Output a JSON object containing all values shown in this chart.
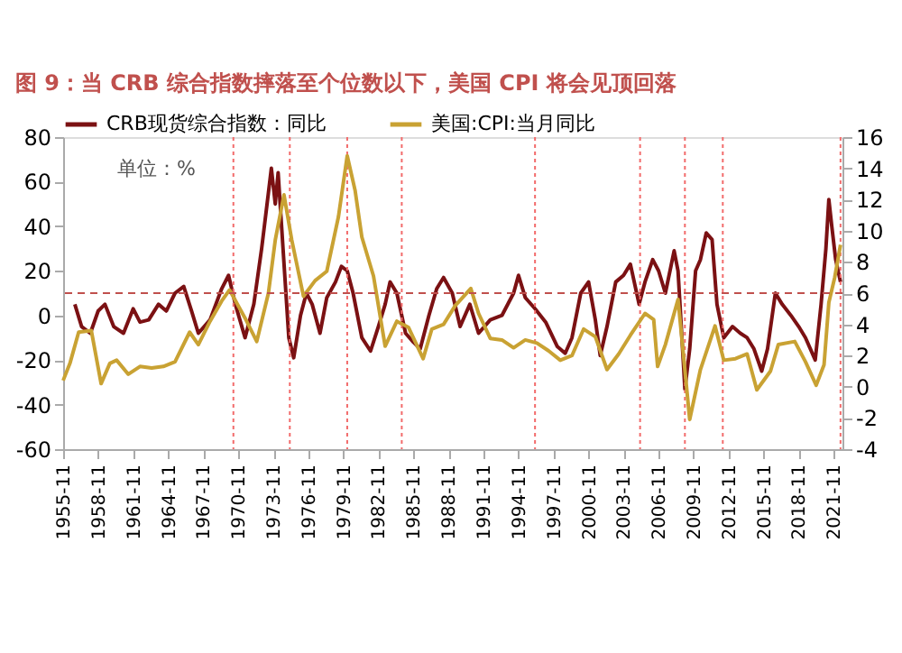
{
  "chart_data": {
    "type": "line",
    "title": "图 9：当 CRB 综合指数摔落至个位数以下，美国 CPI 将会见顶回落",
    "annotations": [
      "单位：%"
    ],
    "xlim": [
      "1955-11",
      "2022-08"
    ],
    "xticks": [
      "1955-11",
      "1958-11",
      "1961-11",
      "1964-11",
      "1967-11",
      "1970-11",
      "1973-11",
      "1976-11",
      "1979-11",
      "1982-11",
      "1985-11",
      "1988-11",
      "1991-11",
      "1994-11",
      "1997-11",
      "2000-11",
      "2003-11",
      "2006-11",
      "2009-11",
      "2012-11",
      "2015-11",
      "2018-11",
      "2021-11"
    ],
    "ylim": [
      -60,
      80
    ],
    "yticks": [
      -60,
      -40,
      -20,
      0,
      20,
      40,
      60,
      80
    ],
    "y2lim": [
      -4,
      16
    ],
    "y2ticks": [
      -4,
      -2,
      0,
      2,
      4,
      6,
      8,
      10,
      12,
      14,
      16
    ],
    "grid": false,
    "legend": "top",
    "marker": "none",
    "line_style": "solid",
    "series": [
      {
        "name": "CRB现货综合指数：同比",
        "color": "#7b1113",
        "axis": "y",
        "x": [
          "1956-11",
          "1957-06",
          "1958-03",
          "1958-11",
          "1959-06",
          "1960-03",
          "1961-01",
          "1961-11",
          "1962-06",
          "1963-03",
          "1964-01",
          "1964-09",
          "1965-06",
          "1966-03",
          "1966-11",
          "1967-06",
          "1968-06",
          "1969-06",
          "1970-01",
          "1970-08",
          "1971-06",
          "1972-03",
          "1972-11",
          "1973-06",
          "1973-09",
          "1974-01",
          "1974-04",
          "1974-09",
          "1975-03",
          "1975-08",
          "1976-03",
          "1976-09",
          "1977-03",
          "1977-11",
          "1978-06",
          "1979-03",
          "1979-09",
          "1980-03",
          "1980-09",
          "1981-06",
          "1982-03",
          "1982-11",
          "1983-06",
          "1983-11",
          "1984-06",
          "1985-03",
          "1985-11",
          "1986-06",
          "1987-03",
          "1987-11",
          "1988-06",
          "1989-03",
          "1989-11",
          "1990-09",
          "1991-06",
          "1992-06",
          "1993-06",
          "1994-06",
          "1994-11",
          "1995-06",
          "1996-04",
          "1997-03",
          "1998-03",
          "1998-11",
          "1999-06",
          "2000-03",
          "2000-11",
          "2001-06",
          "2001-11",
          "2002-06",
          "2003-03",
          "2003-11",
          "2004-06",
          "2005-03",
          "2005-09",
          "2006-05",
          "2006-11",
          "2007-06",
          "2008-03",
          "2008-07",
          "2009-02",
          "2009-07",
          "2010-01",
          "2010-06",
          "2010-12",
          "2011-06",
          "2011-11",
          "2012-06",
          "2013-03",
          "2013-11",
          "2014-06",
          "2015-01",
          "2015-09",
          "2016-03",
          "2016-11",
          "2017-06",
          "2018-03",
          "2018-11",
          "2019-06",
          "2020-04",
          "2020-10",
          "2021-03",
          "2021-06",
          "2021-09",
          "2022-01",
          "2022-06"
        ],
        "values": [
          5,
          -5,
          -8,
          2,
          5,
          -5,
          -8,
          3,
          -3,
          -2,
          5,
          2,
          10,
          13,
          2,
          -8,
          -2,
          12,
          18,
          5,
          -10,
          5,
          30,
          55,
          66,
          50,
          64,
          30,
          -10,
          -19,
          0,
          10,
          5,
          -8,
          8,
          15,
          22,
          20,
          10,
          -10,
          -16,
          -5,
          5,
          15,
          10,
          -8,
          -12,
          -15,
          0,
          12,
          17,
          10,
          -5,
          5,
          -8,
          -2,
          0,
          10,
          18,
          8,
          3,
          -3,
          -14,
          -17,
          -10,
          10,
          15,
          -2,
          -18,
          -5,
          15,
          18,
          23,
          5,
          15,
          25,
          20,
          10,
          29,
          20,
          -33,
          -15,
          20,
          25,
          37,
          34,
          5,
          -10,
          -5,
          -8,
          -10,
          -15,
          -25,
          -15,
          10,
          5,
          0,
          -5,
          -10,
          -20,
          5,
          30,
          52,
          40,
          25,
          15
        ]
      },
      {
        "name": "美国:CPI:当月同比",
        "color": "#c9a233",
        "axis": "y2",
        "x": [
          "1955-11",
          "1956-06",
          "1957-03",
          "1958-04",
          "1959-02",
          "1959-11",
          "1960-06",
          "1961-06",
          "1962-06",
          "1963-06",
          "1964-06",
          "1965-06",
          "1966-09",
          "1967-06",
          "1968-06",
          "1969-06",
          "1970-02",
          "1971-06",
          "1972-06",
          "1973-06",
          "1974-01",
          "1974-10",
          "1975-06",
          "1976-06",
          "1977-06",
          "1978-06",
          "1979-06",
          "1980-03",
          "1980-11",
          "1981-06",
          "1982-06",
          "1983-06",
          "1984-06",
          "1985-06",
          "1986-09",
          "1987-06",
          "1988-06",
          "1989-06",
          "1990-10",
          "1991-06",
          "1992-06",
          "1993-06",
          "1994-06",
          "1995-06",
          "1996-06",
          "1997-06",
          "1998-06",
          "1999-06",
          "2000-06",
          "2001-06",
          "2002-06",
          "2003-06",
          "2004-06",
          "2005-09",
          "2006-06",
          "2006-10",
          "2007-06",
          "2008-07",
          "2009-07",
          "2010-06",
          "2011-09",
          "2012-06",
          "2013-06",
          "2014-06",
          "2015-04",
          "2016-06",
          "2017-02",
          "2018-07",
          "2019-06",
          "2020-05",
          "2021-01",
          "2021-06",
          "2021-12",
          "2022-06"
        ],
        "values": [
          0.4,
          1.5,
          3.5,
          3.6,
          0.2,
          1.5,
          1.7,
          0.8,
          1.3,
          1.2,
          1.3,
          1.6,
          3.5,
          2.7,
          4.2,
          5.5,
          6.2,
          4.4,
          2.9,
          6,
          9.4,
          12.3,
          9.4,
          5.8,
          6.8,
          7.4,
          10.9,
          14.8,
          12.6,
          9.6,
          7.1,
          2.6,
          4.2,
          3.8,
          1.8,
          3.7,
          4,
          5.2,
          6.3,
          4.7,
          3.1,
          3,
          2.5,
          3,
          2.8,
          2.3,
          1.7,
          2,
          3.7,
          3.2,
          1.1,
          2.1,
          3.3,
          4.7,
          4.3,
          1.3,
          2.7,
          5.6,
          -2.1,
          1.1,
          3.9,
          1.7,
          1.8,
          2.1,
          -0.2,
          1,
          2.7,
          2.9,
          1.6,
          0.1,
          1.4,
          5.4,
          7,
          9.1
        ]
      }
    ],
    "ref_lines": [
      {
        "axis": "x",
        "value": "1970-06",
        "color": "#f26b6b",
        "line_style": "dotted"
      },
      {
        "axis": "x",
        "value": "1975-04",
        "color": "#f26b6b",
        "line_style": "dotted"
      },
      {
        "axis": "x",
        "value": "1980-03",
        "color": "#f26b6b",
        "line_style": "dotted"
      },
      {
        "axis": "x",
        "value": "1984-11",
        "color": "#f26b6b",
        "line_style": "dotted"
      },
      {
        "axis": "x",
        "value": "1996-04",
        "color": "#f26b6b",
        "line_style": "dotted"
      },
      {
        "axis": "x",
        "value": "2005-04",
        "color": "#f26b6b",
        "line_style": "dotted"
      },
      {
        "axis": "x",
        "value": "2009-02",
        "color": "#f26b6b",
        "line_style": "dotted"
      },
      {
        "axis": "x",
        "value": "2012-05",
        "color": "#f26b6b",
        "line_style": "dotted"
      },
      {
        "axis": "x",
        "value": "2022-06",
        "color": "#f26b6b",
        "line_style": "dotted"
      },
      {
        "axis": "y2",
        "value": 6,
        "color": "#c0504d",
        "line_style": "dashed"
      }
    ]
  }
}
